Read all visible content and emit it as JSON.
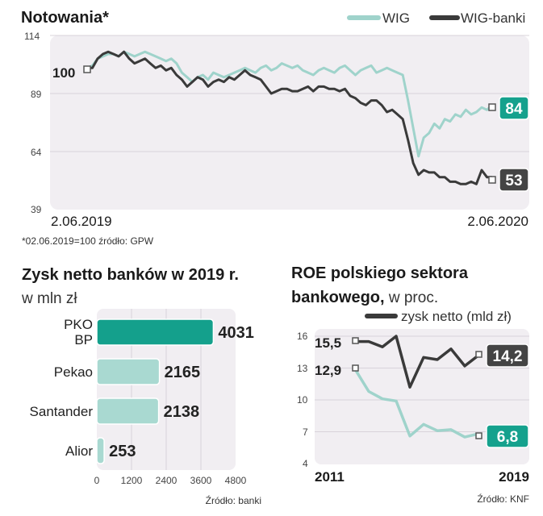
{
  "colors": {
    "wig": "#9fd3cb",
    "wig_banki": "#3a3a3a",
    "panel": "#f1eef2",
    "accent_dark": "#14a08c",
    "bar_light": "#a9d9d1",
    "badge_dark": "#444444",
    "badge_green": "#15a18d"
  },
  "chart_data": [
    {
      "type": "line",
      "title": "Notowania*",
      "xlabel": "",
      "ylabel": "",
      "x_start_label": "2.06.2019",
      "x_end_label": "2.06.2020",
      "yticks": [
        114,
        89,
        64,
        39
      ],
      "ylim": [
        39,
        114
      ],
      "note": "*02.06.2019=100 źródło: GPW",
      "legend_position": "top-right",
      "start_value_label": "100",
      "series": [
        {
          "name": "WIG",
          "color": "#9fd3cb",
          "end_label": "84",
          "values": [
            100,
            101,
            104,
            105,
            106,
            106,
            105,
            107,
            106,
            105,
            106,
            107,
            106,
            105,
            104,
            103,
            104,
            102,
            98,
            96,
            94,
            96,
            97,
            95,
            98,
            97,
            96,
            97,
            98,
            99,
            100,
            99,
            98,
            100,
            101,
            99,
            100,
            102,
            101,
            100,
            101,
            99,
            98,
            97,
            99,
            100,
            99,
            98,
            100,
            101,
            99,
            97,
            99,
            100,
            101,
            98,
            99,
            100,
            99,
            98,
            97,
            86,
            74,
            62,
            70,
            72,
            76,
            74,
            78,
            77,
            80,
            79,
            82,
            80,
            81,
            83,
            82,
            84
          ]
        },
        {
          "name": "WIG-banki",
          "color": "#3a3a3a",
          "end_label": "53",
          "values": [
            100,
            100,
            104,
            106,
            107,
            106,
            105,
            107,
            104,
            102,
            103,
            104,
            102,
            100,
            101,
            99,
            100,
            97,
            95,
            92,
            94,
            96,
            95,
            92,
            94,
            95,
            94,
            96,
            95,
            97,
            99,
            97,
            96,
            95,
            92,
            89,
            90,
            91,
            91,
            90,
            90,
            91,
            92,
            90,
            92,
            92,
            91,
            91,
            90,
            91,
            88,
            87,
            85,
            84,
            86,
            86,
            84,
            81,
            82,
            80,
            78,
            69,
            59,
            54,
            56,
            55,
            55,
            53,
            53,
            51,
            51,
            50,
            50,
            51,
            50,
            56,
            53,
            53
          ]
        }
      ]
    },
    {
      "type": "bar",
      "title": "Zysk netto banków w 2019 r.",
      "subtitle": "w mln zł",
      "categories": [
        [
          "PKO",
          "BP"
        ],
        [
          "Pekao"
        ],
        [
          "Santander"
        ],
        [
          "Alior"
        ]
      ],
      "values": [
        4031,
        2165,
        2138,
        253
      ],
      "xticks": [
        0,
        1200,
        2400,
        3600,
        4800
      ],
      "xlim": [
        0,
        4800
      ],
      "source": "Źródło: banki",
      "highlight_index": 0
    },
    {
      "type": "line",
      "title_line1": "ROE polskiego sektora",
      "title_line2_bold": "bankowego,",
      "title_line2_rest": " w proc.",
      "x_start_label": "2011",
      "x_end_label": "2019",
      "yticks": [
        16,
        13,
        10,
        7,
        4
      ],
      "ylim": [
        4,
        16
      ],
      "source": "Źródło: KNF",
      "legend_position": "top-right",
      "series": [
        {
          "name": "zysk netto (mld zł)",
          "color": "#3a3a3a",
          "start_label": "15,5",
          "end_label": "14,2",
          "values": [
            15.5,
            15.5,
            15.0,
            16.0,
            11.2,
            14.0,
            13.8,
            14.8,
            13.2,
            14.2
          ]
        },
        {
          "name": "",
          "color": "#9fd3cb",
          "start_label": "12,9",
          "end_label": "6,8",
          "values": [
            12.9,
            10.8,
            10.1,
            9.9,
            6.6,
            7.7,
            7.1,
            7.2,
            6.5,
            6.8
          ]
        }
      ]
    }
  ]
}
